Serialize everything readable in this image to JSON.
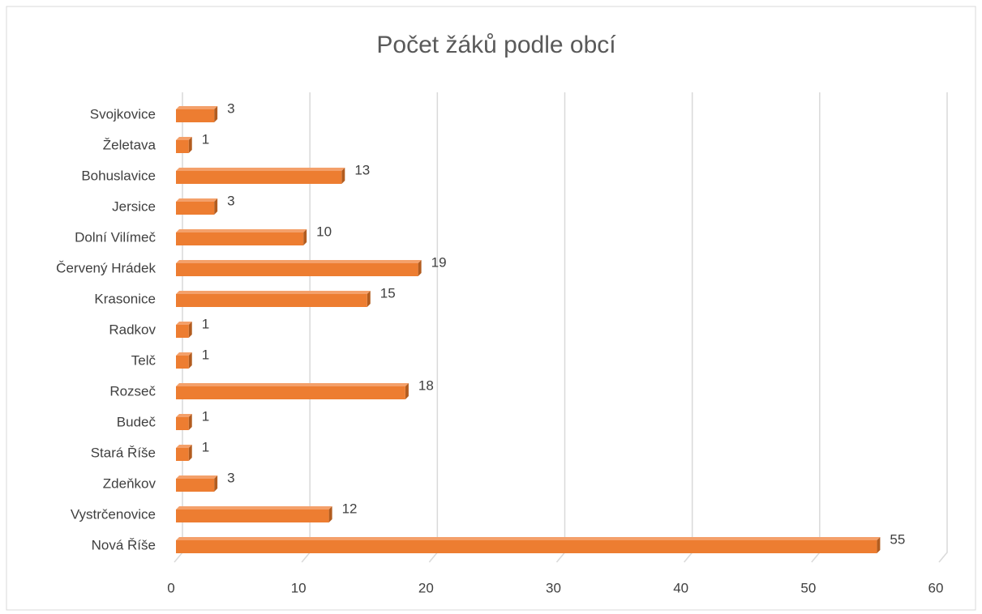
{
  "chart_data": {
    "type": "bar",
    "orientation": "horizontal",
    "title": "Počet žáků podle obcí",
    "categories": [
      "Svojkovice",
      "Želetava",
      "Bohuslavice",
      "Jersice",
      "Dolní Vilímeč",
      "Červený Hrádek",
      "Krasonice",
      "Radkov",
      "Telč",
      "Rozseč",
      "Budeč",
      "Stará Říše",
      "Zdeňkov",
      "Vystrčenovice",
      "Nová Říše"
    ],
    "values": [
      3,
      1,
      13,
      3,
      10,
      19,
      15,
      1,
      1,
      18,
      1,
      1,
      3,
      12,
      55
    ],
    "color": "#ed7d31",
    "xlim": [
      0,
      60
    ],
    "xticks": [
      0,
      10,
      20,
      30,
      40,
      50,
      60
    ],
    "grid": true
  }
}
